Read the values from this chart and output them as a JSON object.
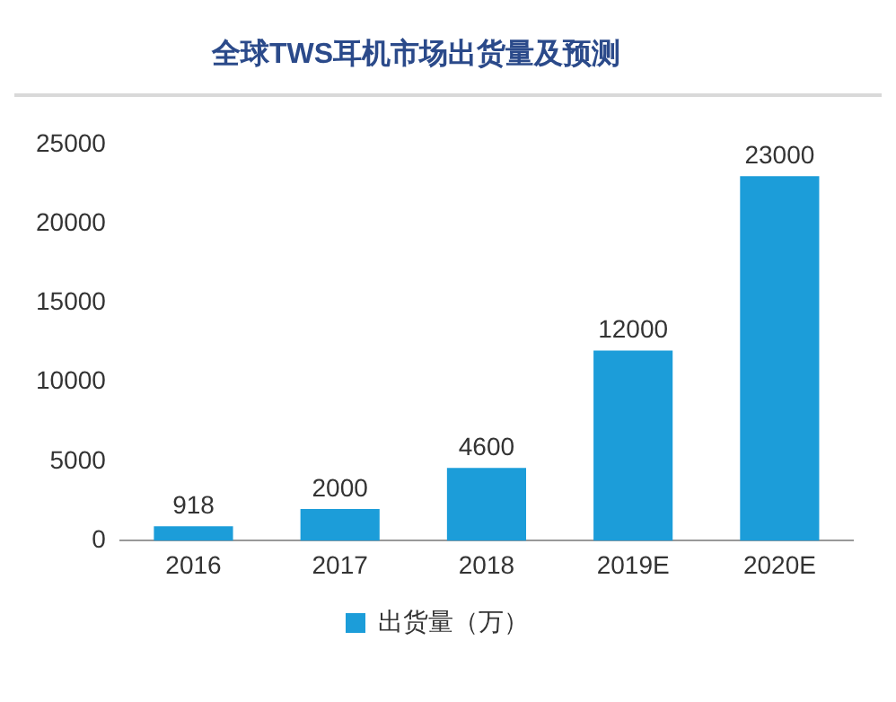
{
  "chart_data": {
    "type": "bar",
    "title": "全球TWS耳机市场出货量及预测",
    "categories": [
      "2016",
      "2017",
      "2018",
      "2019E",
      "2020E"
    ],
    "series": [
      {
        "name": "出货量（万）",
        "color": "#1c9dd9",
        "values": [
          918,
          2000,
          4600,
          12000,
          23000
        ]
      }
    ],
    "ylim": [
      0,
      25000
    ],
    "yticks": [
      0,
      5000,
      10000,
      15000,
      20000,
      25000
    ],
    "grid": false,
    "legend": "bottom",
    "data_labels": true
  }
}
